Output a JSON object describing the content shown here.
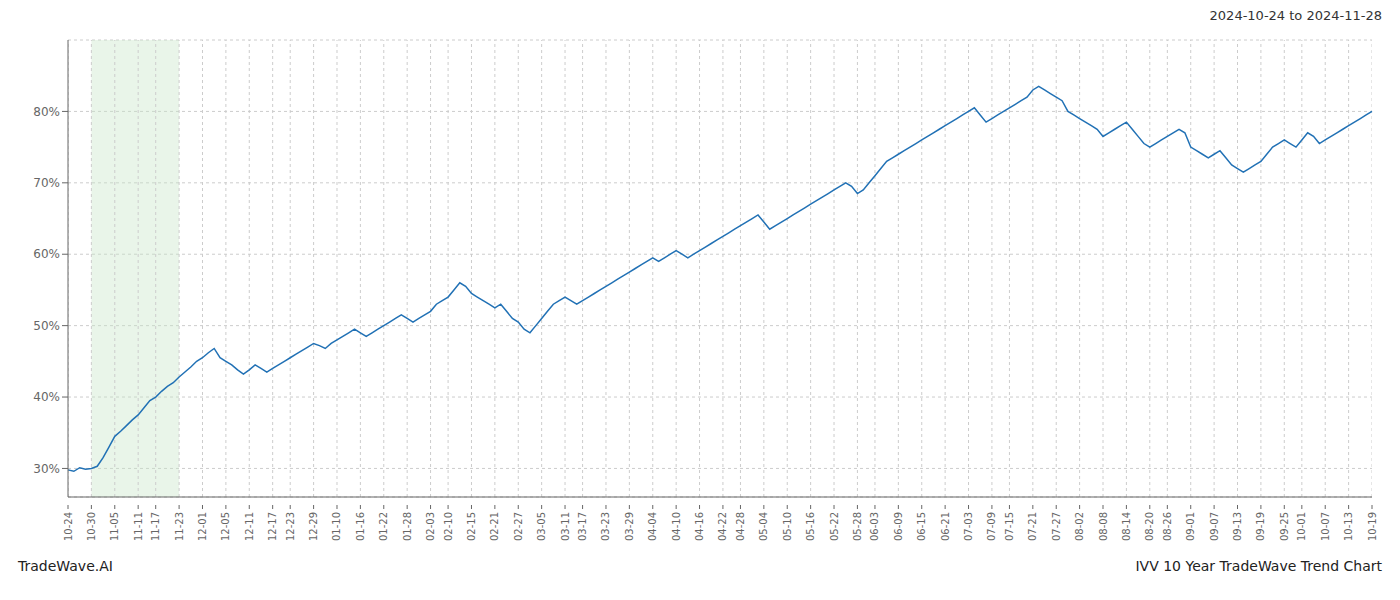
{
  "chart_data": {
    "type": "line",
    "title": "2024-10-24 to 2024-11-28",
    "annotations": [
      "TradeWave.AI",
      "IVV 10 Year TradeWave Trend Chart"
    ],
    "color": "#2171b5",
    "grid": true,
    "shade": {
      "from": "10-30",
      "to": "11-23",
      "color": "#c8e6c9"
    },
    "ylim": [
      26,
      90
    ],
    "yticks": [
      {
        "value": 30,
        "label": "30%"
      },
      {
        "value": 40,
        "label": "40%"
      },
      {
        "value": 50,
        "label": "50%"
      },
      {
        "value": 60,
        "label": "60%"
      },
      {
        "value": 70,
        "label": "70%"
      },
      {
        "value": 80,
        "label": "80%"
      }
    ],
    "categories": [
      "10-24",
      null,
      null,
      null,
      "10-30",
      null,
      null,
      null,
      "11-05",
      null,
      null,
      null,
      "11-11",
      null,
      null,
      "11-17",
      null,
      null,
      null,
      "11-23",
      null,
      null,
      null,
      "12-01",
      null,
      null,
      null,
      "12-05",
      null,
      null,
      null,
      "12-11",
      null,
      null,
      null,
      "12-17",
      null,
      null,
      "12-23",
      null,
      null,
      null,
      "12-29",
      null,
      null,
      null,
      "01-10",
      null,
      null,
      null,
      "01-16",
      null,
      null,
      null,
      "01-22",
      null,
      null,
      null,
      "01-28",
      null,
      null,
      null,
      "02-03",
      null,
      null,
      "02-10",
      null,
      null,
      null,
      "02-15",
      null,
      null,
      null,
      "02-21",
      null,
      null,
      null,
      "02-27",
      null,
      null,
      null,
      "03-05",
      null,
      null,
      null,
      "03-11",
      null,
      null,
      "03-17",
      null,
      null,
      null,
      "03-23",
      null,
      null,
      null,
      "03-29",
      null,
      null,
      null,
      "04-04",
      null,
      null,
      null,
      "04-10",
      null,
      null,
      null,
      "04-16",
      null,
      null,
      null,
      "04-22",
      null,
      null,
      "04-28",
      null,
      null,
      null,
      "05-04",
      null,
      null,
      null,
      "05-10",
      null,
      null,
      null,
      "05-16",
      null,
      null,
      null,
      "05-22",
      null,
      null,
      null,
      "05-28",
      null,
      null,
      "06-03",
      null,
      null,
      null,
      "06-09",
      null,
      null,
      null,
      "06-15",
      null,
      null,
      null,
      "06-21",
      null,
      null,
      null,
      "07-03",
      null,
      null,
      null,
      "07-09",
      null,
      null,
      "07-15",
      null,
      null,
      null,
      "07-21",
      null,
      null,
      null,
      "07-27",
      null,
      null,
      null,
      "08-02",
      null,
      null,
      null,
      "08-08",
      null,
      null,
      null,
      "08-14",
      null,
      null,
      null,
      "08-20",
      null,
      null,
      "08-26",
      null,
      null,
      null,
      "09-01",
      null,
      null,
      null,
      "09-07",
      null,
      null,
      null,
      "09-13",
      null,
      null,
      null,
      "09-19",
      null,
      null,
      null,
      "09-25",
      null,
      null,
      "10-01",
      null,
      null,
      null,
      "10-07",
      null,
      null,
      null,
      "10-13",
      null,
      null,
      null,
      "10-19"
    ],
    "values": [
      29.8,
      29.6,
      30.1,
      29.9,
      30.0,
      30.3,
      31.5,
      33.0,
      34.5,
      35.2,
      36.0,
      36.8,
      37.5,
      38.5,
      39.5,
      40.0,
      40.8,
      41.5,
      42.0,
      42.8,
      43.5,
      44.2,
      45.0,
      45.5,
      46.2,
      46.8,
      45.5,
      45.0,
      44.5,
      43.8,
      43.2,
      43.8,
      44.5,
      44.0,
      43.5,
      44.0,
      44.5,
      45.0,
      45.5,
      46.0,
      46.5,
      47.0,
      47.5,
      47.2,
      46.8,
      47.5,
      48.0,
      48.5,
      49.0,
      49.5,
      49.0,
      48.5,
      49.0,
      49.5,
      50.0,
      50.5,
      51.0,
      51.5,
      51.0,
      50.5,
      51.0,
      51.5,
      52.0,
      53.0,
      53.5,
      54.0,
      55.0,
      56.0,
      55.5,
      54.5,
      54.0,
      53.5,
      53.0,
      52.5,
      53.0,
      52.0,
      51.0,
      50.5,
      49.5,
      49.0,
      50.0,
      51.0,
      52.0,
      53.0,
      53.5,
      54.0,
      53.5,
      53.0,
      53.5,
      54.0,
      54.5,
      55.0,
      55.5,
      56.0,
      56.5,
      57.0,
      57.5,
      58.0,
      58.5,
      59.0,
      59.5,
      59.0,
      59.5,
      60.0,
      60.5,
      60.0,
      59.5,
      60.0,
      60.5,
      61.0,
      61.5,
      62.0,
      62.5,
      63.0,
      63.5,
      64.0,
      64.5,
      65.0,
      65.5,
      64.5,
      63.5,
      64.0,
      64.5,
      65.0,
      65.5,
      66.0,
      66.5,
      67.0,
      67.5,
      68.0,
      68.5,
      69.0,
      69.5,
      70.0,
      69.5,
      68.5,
      69.0,
      70.0,
      71.0,
      72.0,
      73.0,
      73.5,
      74.0,
      74.5,
      75.0,
      75.5,
      76.0,
      76.5,
      77.0,
      77.5,
      78.0,
      78.5,
      79.0,
      79.5,
      80.0,
      80.5,
      79.5,
      78.5,
      79.0,
      79.5,
      80.0,
      80.5,
      81.0,
      81.5,
      82.0,
      83.0,
      83.5,
      83.0,
      82.5,
      82.0,
      81.5,
      80.0,
      79.5,
      79.0,
      78.5,
      78.0,
      77.5,
      76.5,
      77.0,
      77.5,
      78.0,
      78.5,
      77.5,
      76.5,
      75.5,
      75.0,
      75.5,
      76.0,
      76.5,
      77.0,
      77.5,
      77.0,
      75.0,
      74.5,
      74.0,
      73.5,
      74.0,
      74.5,
      73.5,
      72.5,
      72.0,
      71.5,
      72.0,
      72.5,
      73.0,
      74.0,
      75.0,
      75.5,
      76.0,
      75.5,
      75.0,
      76.0,
      77.0,
      76.5,
      75.5,
      76.0,
      76.5,
      77.0,
      77.5,
      78.0,
      78.5,
      79.0,
      79.5,
      80.0
    ]
  }
}
